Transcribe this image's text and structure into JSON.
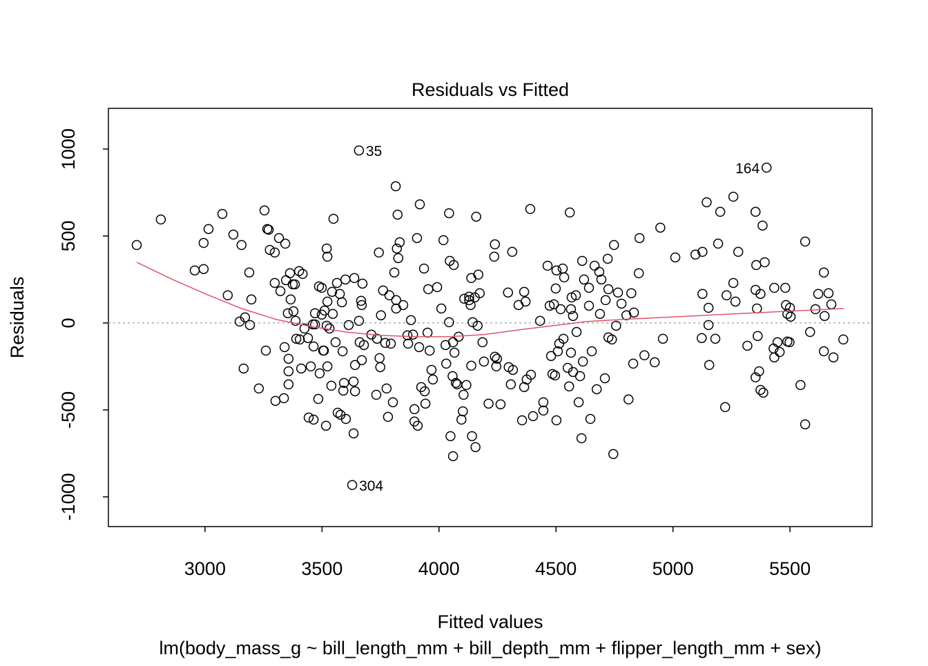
{
  "chart_data": {
    "type": "scatter",
    "title": "Residuals vs Fitted",
    "xlabel": "Fitted values",
    "subtitle": "lm(body_mass_g ~ bill_length_mm + bill_depth_mm + flipper_length_mm + sex)",
    "ylabel": "Residuals",
    "xlim": [
      2587,
      5851
    ],
    "ylim": [
      -1171,
      1234
    ],
    "xticks": [
      3000,
      3500,
      4000,
      4500,
      5000,
      5500
    ],
    "yticks": [
      -1000,
      -500,
      0,
      500,
      1000
    ],
    "hline": 0,
    "x": [
      2708,
      2811,
      2956,
      2994,
      2994,
      3015,
      3074,
      3097,
      3121,
      3148,
      3156,
      3165,
      3171,
      3189,
      3192,
      3198,
      3230,
      3254,
      3260,
      3266,
      3272,
      3277,
      3298,
      3298,
      3301,
      3316,
      3322,
      3337,
      3340,
      3343,
      3346,
      3354,
      3357,
      3357,
      3357,
      3363,
      3366,
      3375,
      3378,
      3384,
      3387,
      3390,
      3402,
      3405,
      3411,
      3417,
      3425,
      3440,
      3443,
      3452,
      3461,
      3464,
      3464,
      3470,
      3470,
      3484,
      3487,
      3490,
      3499,
      3499,
      3505,
      3508,
      3511,
      3517,
      3520,
      3520,
      3523,
      3523,
      3523,
      3532,
      3540,
      3543,
      3546,
      3549,
      3558,
      3564,
      3567,
      3576,
      3579,
      3585,
      3588,
      3591,
      3594,
      3600,
      3602,
      3614,
      3635,
      3635,
      3638,
      3641,
      3641,
      3658,
      3661,
      3667,
      3670,
      3670,
      3673,
      3679,
      3711,
      3732,
      3735,
      3743,
      3746,
      3749,
      3752,
      3761,
      3770,
      3776,
      3782,
      3788,
      3794,
      3803,
      3809,
      3815,
      3817,
      3817,
      3820,
      3823,
      3826,
      3832,
      3847,
      3865,
      3868,
      3880,
      3889,
      3895,
      3895,
      3906,
      3909,
      3915,
      3918,
      3924,
      3936,
      3939,
      3942,
      3951,
      3954,
      3960,
      3968,
      3974,
      3992,
      4010,
      4019,
      4028,
      4031,
      4043,
      4043,
      4046,
      4049,
      4058,
      4060,
      4060,
      4063,
      4066,
      4072,
      4078,
      4084,
      4096,
      4102,
      4105,
      4108,
      4117,
      4129,
      4129,
      4135,
      4138,
      4138,
      4141,
      4144,
      4153,
      4156,
      4159,
      4165,
      4168,
      4174,
      4186,
      4192,
      4212,
      4236,
      4239,
      4239,
      4245,
      4248,
      4263,
      4295,
      4298,
      4307,
      4313,
      4316,
      4340,
      4355,
      4364,
      4364,
      4370,
      4375,
      4390,
      4393,
      4402,
      4432,
      4446,
      4446,
      4464,
      4473,
      4479,
      4485,
      4491,
      4496,
      4499,
      4502,
      4502,
      4508,
      4514,
      4520,
      4529,
      4532,
      4535,
      4550,
      4556,
      4559,
      4564,
      4564,
      4567,
      4573,
      4573,
      4585,
      4588,
      4597,
      4603,
      4609,
      4612,
      4615,
      4620,
      4641,
      4641,
      4647,
      4653,
      4665,
      4674,
      4685,
      4688,
      4694,
      4709,
      4712,
      4721,
      4724,
      4724,
      4739,
      4745,
      4748,
      4757,
      4765,
      4780,
      4801,
      4810,
      4822,
      4830,
      4833,
      4854,
      4857,
      4878,
      4922,
      4946,
      4957,
      5010,
      5096,
      5123,
      5126,
      5126,
      5144,
      5152,
      5152,
      5155,
      5181,
      5193,
      5202,
      5223,
      5229,
      5258,
      5258,
      5267,
      5279,
      5318,
      5353,
      5353,
      5353,
      5356,
      5359,
      5362,
      5368,
      5374,
      5374,
      5383,
      5386,
      5392,
      5400,
      5433,
      5430,
      5433,
      5447,
      5456,
      5480,
      5483,
      5489,
      5489,
      5498,
      5500,
      5503,
      5545,
      5565,
      5565,
      5586,
      5609,
      5621,
      5645,
      5645,
      5648,
      5665,
      5677,
      5686,
      5728,
      3658,
      3629
    ],
    "y": [
      448,
      595,
      302,
      310,
      460,
      540,
      627,
      159,
      508,
      8,
      448,
      -262,
      32,
      290,
      -12,
      135,
      -377,
      647,
      -159,
      540,
      536,
      420,
      405,
      230,
      -448,
      488,
      183,
      -433,
      -139,
      456,
      246,
      56,
      -206,
      -278,
      -353,
      286,
      135,
      222,
      67,
      222,
      12,
      -91,
      298,
      -95,
      -262,
      282,
      -32,
      -87,
      -544,
      -250,
      -8,
      -135,
      -556,
      56,
      -8,
      -437,
      210,
      -290,
      202,
      48,
      -159,
      -159,
      71,
      -591,
      -16,
      428,
      381,
      123,
      -250,
      -32,
      -361,
      179,
      52,
      599,
      -111,
      230,
      -516,
      167,
      -528,
      119,
      -163,
      -389,
      -345,
      250,
      -552,
      -12,
      -635,
      -337,
      258,
      -242,
      -393,
      12,
      -111,
      127,
      103,
      -214,
      226,
      -127,
      -67,
      -413,
      -91,
      405,
      -202,
      -254,
      44,
      187,
      -115,
      -377,
      -540,
      159,
      -119,
      -456,
      290,
      786,
      131,
      83,
      428,
      623,
      373,
      464,
      103,
      -71,
      -119,
      16,
      -67,
      -496,
      -567,
      488,
      -591,
      -139,
      682,
      -369,
      313,
      -393,
      -464,
      -56,
      194,
      -159,
      -270,
      -325,
      206,
      83,
      476,
      -127,
      -234,
      631,
      4,
      357,
      -651,
      -306,
      -111,
      -766,
      333,
      -171,
      -345,
      -353,
      -79,
      -556,
      -508,
      -413,
      139,
      -357,
      131,
      151,
      103,
      258,
      -246,
      -651,
      4,
      147,
      -714,
      611,
      -16,
      278,
      171,
      -111,
      -222,
      -464,
      381,
      452,
      -194,
      -250,
      -206,
      -468,
      175,
      -254,
      -353,
      409,
      -270,
      103,
      -560,
      179,
      -369,
      123,
      -325,
      655,
      -298,
      -536,
      12,
      -456,
      -504,
      329,
      99,
      -190,
      -294,
      107,
      -302,
      198,
      -560,
      302,
      -163,
      -119,
      79,
      313,
      -91,
      262,
      -258,
      -365,
      635,
      79,
      -171,
      147,
      -282,
      40,
      159,
      -52,
      -456,
      -306,
      -663,
      357,
      -222,
      250,
      202,
      99,
      -552,
      -163,
      329,
      -381,
      294,
      52,
      250,
      -318,
      131,
      369,
      -83,
      194,
      -95,
      -754,
      448,
      -16,
      175,
      111,
      44,
      -440,
      171,
      -234,
      60,
      286,
      488,
      -186,
      -226,
      548,
      -91,
      377,
      393,
      -87,
      409,
      167,
      694,
      -12,
      87,
      -242,
      -91,
      456,
      639,
      -484,
      159,
      726,
      230,
      123,
      409,
      -131,
      639,
      190,
      -313,
      333,
      83,
      -75,
      -278,
      167,
      -385,
      560,
      -401,
      349,
      893,
      202,
      -147,
      -198,
      -111,
      -167,
      202,
      103,
      -107,
      52,
      -111,
      87,
      36,
      -357,
      468,
      -583,
      -52,
      79,
      167,
      290,
      -163,
      40,
      171,
      107,
      -198,
      -95,
      992,
      -932
    ],
    "annotations": [
      {
        "text": "35",
        "x": 3658,
        "y": 992
      },
      {
        "text": "164",
        "x": 5400,
        "y": 893
      },
      {
        "text": "304",
        "x": 3629,
        "y": -932
      }
    ],
    "smooth": {
      "color": "#df536b",
      "x": [
        2708,
        2861,
        3009,
        3156,
        3304,
        3452,
        3600,
        3749,
        3895,
        4043,
        4190,
        4340,
        4485,
        4632,
        4780,
        5081,
        5377,
        5731
      ],
      "y": [
        349,
        250,
        163,
        83,
        20,
        -20,
        -52,
        -71,
        -79,
        -79,
        -67,
        -40,
        -16,
        8,
        20,
        40,
        60,
        83
      ]
    }
  }
}
